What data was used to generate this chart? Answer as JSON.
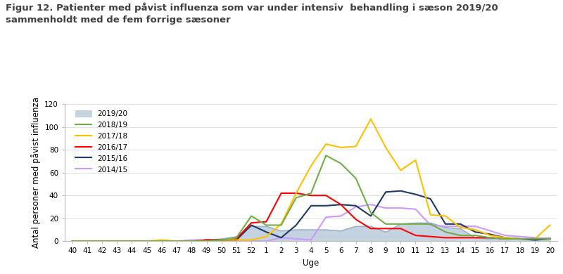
{
  "title_line1": "Figur 12. Patienter med påvist influenza som var under intensiv  behandling i sæson 2019/20",
  "title_line2": "sammenholdt med de fem forrige sæsoner",
  "xlabel": "Uge",
  "ylabel": "Antal personer med påvist influenza",
  "weeks": [
    40,
    41,
    42,
    43,
    44,
    45,
    46,
    47,
    48,
    49,
    50,
    51,
    52,
    1,
    2,
    3,
    4,
    5,
    6,
    7,
    8,
    9,
    10,
    11,
    12,
    13,
    14,
    15,
    16,
    17,
    18,
    19,
    20
  ],
  "series": {
    "2019/20": {
      "color": "#8ca9c5",
      "fill": true,
      "data": [
        0,
        0,
        0,
        0,
        0,
        0,
        0,
        0,
        0,
        1,
        2,
        4,
        13,
        13,
        9,
        10,
        10,
        10,
        9,
        13,
        13,
        8,
        15,
        16,
        16,
        12,
        11,
        3,
        2,
        3,
        2,
        2,
        3
      ]
    },
    "2018/19": {
      "color": "#70ad47",
      "fill": false,
      "data": [
        0,
        0,
        0,
        0,
        0,
        0,
        0,
        0,
        0,
        0,
        1,
        3,
        22,
        14,
        14,
        38,
        42,
        75,
        68,
        55,
        25,
        15,
        15,
        15,
        15,
        8,
        5,
        5,
        3,
        2,
        2,
        2,
        2
      ]
    },
    "2017/18": {
      "color": "#ffc000",
      "fill": false,
      "data": [
        0,
        0,
        0,
        0,
        0,
        0,
        1,
        0,
        0,
        0,
        1,
        1,
        1,
        4,
        15,
        42,
        66,
        85,
        82,
        83,
        107,
        82,
        62,
        71,
        23,
        22,
        12,
        10,
        5,
        3,
        2,
        2,
        14
      ]
    },
    "2016/17": {
      "color": "#ff0000",
      "fill": false,
      "data": [
        0,
        0,
        0,
        0,
        0,
        0,
        0,
        0,
        0,
        1,
        1,
        2,
        16,
        17,
        42,
        42,
        40,
        40,
        32,
        19,
        11,
        11,
        11,
        5,
        4,
        3,
        3,
        3,
        3,
        2,
        2,
        2,
        2
      ]
    },
    "2015/16": {
      "color": "#1f3864",
      "fill": false,
      "data": [
        0,
        0,
        0,
        0,
        0,
        0,
        0,
        0,
        0,
        1,
        1,
        1,
        14,
        8,
        3,
        14,
        31,
        31,
        32,
        31,
        22,
        43,
        44,
        41,
        37,
        15,
        15,
        8,
        6,
        3,
        2,
        1,
        2
      ]
    },
    "2014/15": {
      "color": "#cc99ff",
      "fill": false,
      "data": [
        0,
        0,
        0,
        0,
        0,
        0,
        0,
        0,
        1,
        0,
        1,
        0,
        0,
        0,
        3,
        2,
        1,
        21,
        22,
        30,
        32,
        29,
        29,
        28,
        14,
        13,
        13,
        13,
        9,
        5,
        4,
        3,
        2
      ]
    }
  },
  "ylim": [
    0,
    120
  ],
  "yticks": [
    0,
    20,
    40,
    60,
    80,
    100,
    120
  ],
  "legend_order": [
    "2019/20",
    "2018/19",
    "2017/18",
    "2016/17",
    "2015/16",
    "2014/15"
  ],
  "title_color": "#404040",
  "title_fontsize": 9.5,
  "axis_label_fontsize": 8.5,
  "tick_fontsize": 7.5
}
